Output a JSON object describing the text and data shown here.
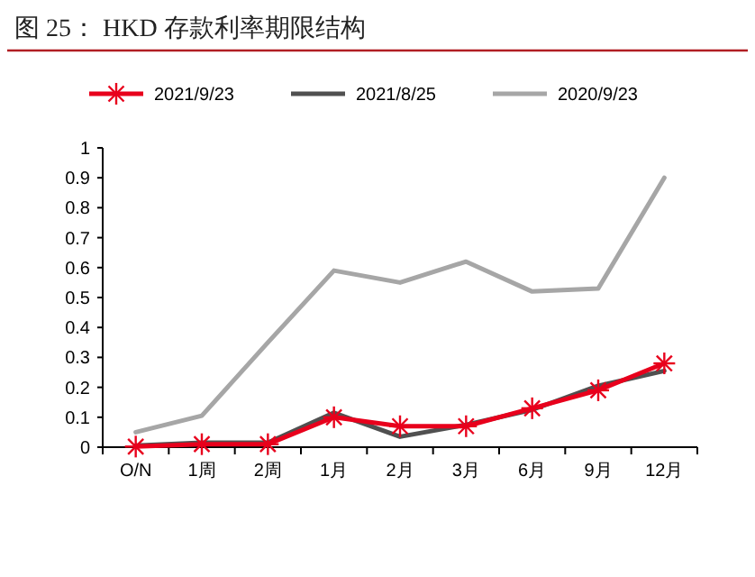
{
  "chart_data": {
    "type": "line",
    "title": "图 25：  HKD 存款利率期限结构",
    "categories": [
      "O/N",
      "1周",
      "2周",
      "1月",
      "2月",
      "3月",
      "6月",
      "9月",
      "12月"
    ],
    "series": [
      {
        "name": "2021/9/23",
        "color": "#e8001c",
        "marker": "cross",
        "values": [
          0.002,
          0.01,
          0.01,
          0.1,
          0.07,
          0.07,
          0.13,
          0.19,
          0.28
        ]
      },
      {
        "name": "2021/8/25",
        "color": "#505050",
        "values": [
          0.005,
          0.015,
          0.015,
          0.115,
          0.035,
          0.075,
          0.125,
          0.205,
          0.255
        ]
      },
      {
        "name": "2020/9/23",
        "color": "#a6a6a6",
        "values": [
          0.05,
          0.105,
          0.35,
          0.59,
          0.55,
          0.62,
          0.52,
          0.53,
          0.9
        ]
      }
    ],
    "ylim": [
      0,
      1
    ],
    "yticks": [
      0,
      0.1,
      0.2,
      0.3,
      0.4,
      0.5,
      0.6,
      0.7,
      0.8,
      0.9,
      1
    ],
    "grid": false,
    "legend": "top"
  }
}
